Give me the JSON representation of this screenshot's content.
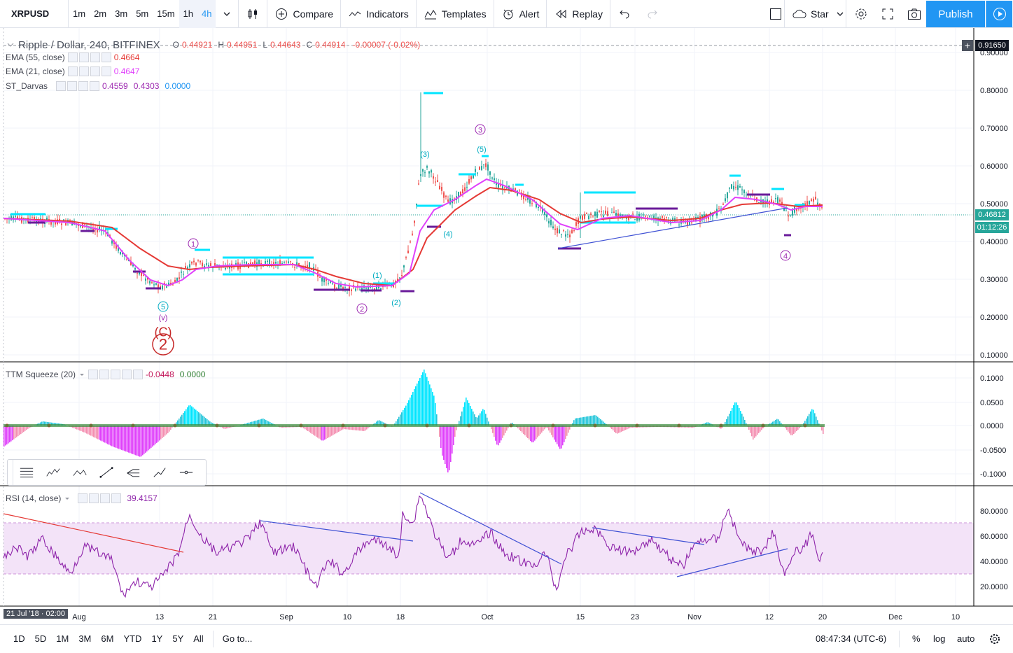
{
  "header": {
    "symbol": "XRPUSD",
    "timeframes": [
      "1m",
      "2m",
      "3m",
      "5m",
      "15m",
      "1h",
      "4h"
    ],
    "active_timeframe": "4h",
    "compare_label": "Compare",
    "indicators_label": "Indicators",
    "templates_label": "Templates",
    "alert_label": "Alert",
    "replay_label": "Replay",
    "star_label": "Star",
    "publish_label": "Publish"
  },
  "main_pane": {
    "title": "Ripple / Dollar, 240, BITFINEX",
    "ohlc": {
      "o": "0.44921",
      "h": "0.44951",
      "l": "0.44643",
      "c": "0.44914",
      "change": "-0.00007 (-0.02%)"
    },
    "ema55": {
      "label": "EMA (55, close)",
      "value": "0.4664"
    },
    "ema21": {
      "label": "EMA (21, close)",
      "value": "0.4647"
    },
    "darvas": {
      "label": "ST_Darvas",
      "v1": "0.4559",
      "v2": "0.4303",
      "v3": "0.0000"
    },
    "price_axis": [
      "0.90000",
      "0.80000",
      "0.70000",
      "0.60000",
      "0.50000",
      "0.40000",
      "0.30000",
      "0.20000",
      "0.10000"
    ],
    "crosshair_price": "0.91650",
    "last_price": "0.46812",
    "countdown": "01:12:26",
    "wave_labels": [
      {
        "text": "1",
        "circled": true
      },
      {
        "text": "5",
        "circled": true
      },
      {
        "text": "(v)",
        "circled": false
      },
      {
        "text": "(C)",
        "circled": false
      },
      {
        "text": "2",
        "circled": true
      },
      {
        "text": "(1)",
        "circled": false
      },
      {
        "text": "2",
        "circled": true
      },
      {
        "text": "(2)",
        "circled": false
      },
      {
        "text": "(3)",
        "circled": false
      },
      {
        "text": "3",
        "circled": true
      },
      {
        "text": "(5)",
        "circled": false
      },
      {
        "text": "(4)",
        "circled": false
      },
      {
        "text": "4",
        "circled": true
      }
    ]
  },
  "squeeze_pane": {
    "label": "TTM Squeeze (20)",
    "v1": "-0.0448",
    "v2": "0.0000",
    "axis": [
      "0.1000",
      "0.0500",
      "0.0000",
      "-0.0500",
      "-0.1000"
    ]
  },
  "rsi_pane": {
    "label": "RSI (14, close)",
    "value": "39.4157",
    "axis": [
      "80.0000",
      "60.0000",
      "40.0000",
      "20.0000"
    ]
  },
  "time_axis": {
    "labels": [
      "Aug",
      "13",
      "21",
      "Sep",
      "10",
      "18",
      "Oct",
      "15",
      "23",
      "Nov",
      "12",
      "20",
      "Dec",
      "10"
    ],
    "crosshair_time": "21 Jul '18 · 02:00"
  },
  "footer": {
    "ranges": [
      "1D",
      "5D",
      "1M",
      "3M",
      "6M",
      "YTD",
      "1Y",
      "5Y",
      "All"
    ],
    "goto_label": "Go to...",
    "clock": "08:47:34 (UTC-6)",
    "percent_label": "%",
    "log_label": "log",
    "auto_label": "auto"
  },
  "colors": {
    "accent": "#2196f3",
    "ema55": "#e53935",
    "ema21": "#e040fb",
    "darvas_top": "#00e5ff",
    "darvas_bottom": "#6a1b9a",
    "up_candle": "#26a69a",
    "down_candle": "#ef5350",
    "rsi_band": "#e1bee7"
  }
}
